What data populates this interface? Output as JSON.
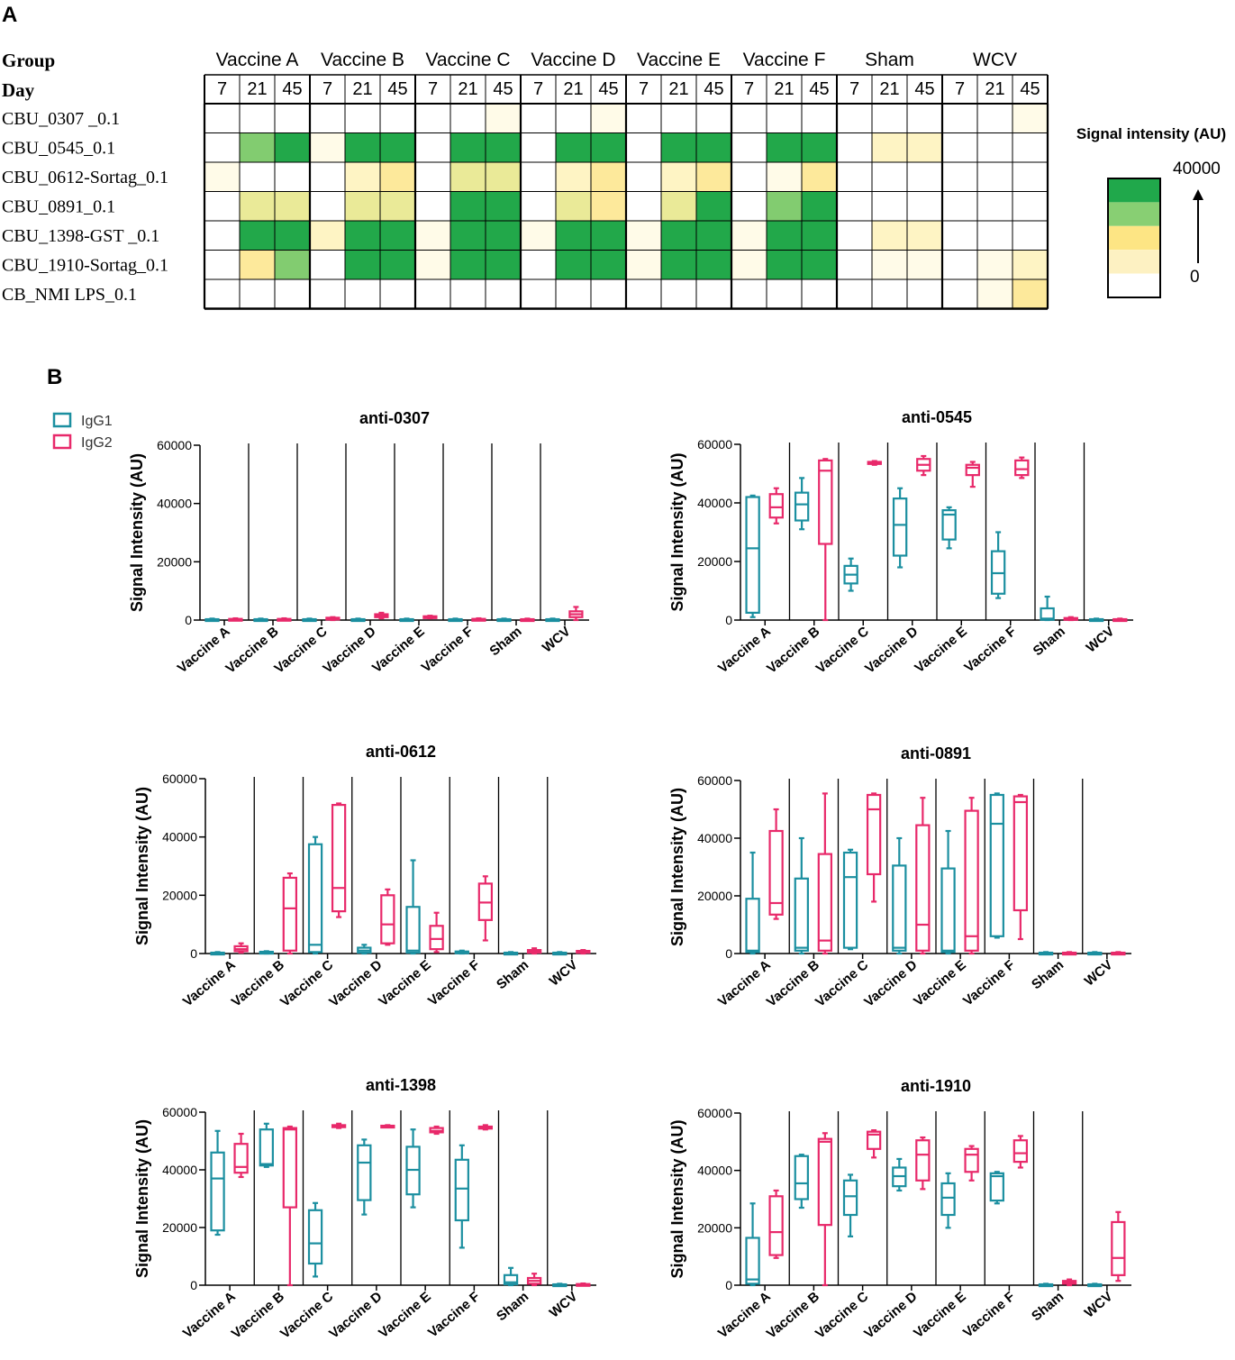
{
  "panel_a_label": "A",
  "panel_b_label": "B",
  "heatmap": {
    "row_header_group": "Group",
    "row_header_day": "Day",
    "groups": [
      "Vaccine A",
      "Vaccine B",
      "Vaccine C",
      "Vaccine D",
      "Vaccine E",
      "Vaccine F",
      "Sham",
      "WCV"
    ],
    "days": [
      "7",
      "21",
      "45"
    ],
    "rows": [
      "CBU_0307 _0.1",
      "CBU_0545_0.1",
      "CBU_0612-Sortag_0.1",
      "CBU_0891_0.1",
      "CBU_1398-GST _0.1",
      "CBU_1910-Sortag_0.1",
      "CB_NMI LPS_0.1"
    ],
    "levels": [
      [
        0,
        0,
        0,
        0,
        0,
        0,
        0,
        0,
        1,
        0,
        0,
        1,
        0,
        0,
        0,
        0,
        0,
        0,
        0,
        0,
        0,
        0,
        0,
        1
      ],
      [
        0,
        6,
        7,
        1,
        7,
        7,
        0,
        7,
        7,
        0,
        7,
        7,
        0,
        7,
        7,
        0,
        7,
        7,
        0,
        2,
        2,
        0,
        0,
        0
      ],
      [
        1,
        0,
        0,
        0,
        2,
        3,
        0,
        4,
        4,
        0,
        2,
        3,
        0,
        2,
        3,
        0,
        1,
        3,
        0,
        0,
        0,
        0,
        0,
        0
      ],
      [
        0,
        4,
        4,
        0,
        4,
        4,
        0,
        7,
        7,
        0,
        4,
        3,
        0,
        4,
        7,
        0,
        6,
        7,
        0,
        0,
        0,
        0,
        0,
        0
      ],
      [
        0,
        7,
        7,
        2,
        7,
        7,
        1,
        7,
        7,
        1,
        7,
        7,
        1,
        7,
        7,
        1,
        7,
        7,
        0,
        2,
        2,
        0,
        0,
        0
      ],
      [
        0,
        3,
        6,
        0,
        7,
        7,
        1,
        7,
        7,
        0,
        7,
        7,
        1,
        7,
        7,
        1,
        7,
        7,
        0,
        1,
        1,
        0,
        1,
        2
      ],
      [
        0,
        0,
        0,
        0,
        0,
        0,
        0,
        0,
        0,
        0,
        0,
        0,
        0,
        0,
        0,
        0,
        0,
        0,
        0,
        0,
        0,
        0,
        1,
        3
      ]
    ],
    "level_colors": [
      "#ffffff",
      "#fffbe8",
      "#fef4c4",
      "#fde99b",
      "#eaea98",
      "#d4e48f",
      "#82cc70",
      "#22a84a"
    ],
    "legend": {
      "title": "Signal intensity (AU)",
      "max_label": "40000",
      "min_label": "0",
      "colors": [
        "#20a84b",
        "#88cf73",
        "#fde584",
        "#fdf1c2",
        "#ffffff"
      ]
    }
  },
  "box_legend": {
    "igg1": "IgG1",
    "igg2": "IgG2"
  },
  "colors": {
    "igg1": "#1b8fa0",
    "igg2": "#e8296a"
  },
  "chart_data": [
    {
      "type": "box",
      "title": "anti-0307",
      "ylabel": "Signal Intensity (AU)",
      "ylim": [
        0,
        60000
      ],
      "yticks": [
        0,
        20000,
        40000,
        60000
      ],
      "categories": [
        "Vaccine A",
        "Vaccine B",
        "Vaccine C",
        "Vaccine D",
        "Vaccine E",
        "Vaccine F",
        "Sham",
        "WCV"
      ],
      "series": [
        {
          "name": "IgG1",
          "boxes": [
            [
              0,
              100,
              200,
              300,
              500
            ],
            [
              0,
              100,
              200,
              300,
              500
            ],
            [
              0,
              100,
              200,
              300,
              500
            ],
            [
              0,
              100,
              200,
              300,
              500
            ],
            [
              0,
              100,
              200,
              300,
              500
            ],
            [
              0,
              100,
              200,
              300,
              500
            ],
            [
              0,
              100,
              200,
              300,
              500
            ],
            [
              0,
              100,
              200,
              300,
              500
            ]
          ]
        },
        {
          "name": "IgG2",
          "boxes": [
            [
              0,
              100,
              200,
              400,
              600
            ],
            [
              0,
              100,
              200,
              400,
              600
            ],
            [
              0,
              200,
              400,
              800,
              1000
            ],
            [
              600,
              1000,
              1500,
              2000,
              2500
            ],
            [
              600,
              800,
              1000,
              1300,
              1500
            ],
            [
              0,
              100,
              200,
              400,
              600
            ],
            [
              0,
              100,
              200,
              300,
              500
            ],
            [
              0,
              1000,
              2000,
              3000,
              4500
            ]
          ]
        }
      ]
    },
    {
      "type": "box",
      "title": "anti-0545",
      "ylabel": "Signal Intensity (AU)",
      "ylim": [
        0,
        60000
      ],
      "yticks": [
        0,
        20000,
        40000,
        60000
      ],
      "categories": [
        "Vaccine A",
        "Vaccine B",
        "Vaccine C",
        "Vaccine D",
        "Vaccine E",
        "Vaccine F",
        "Sham",
        "WCV"
      ],
      "series": [
        {
          "name": "IgG1",
          "boxes": [
            [
              1000,
              2500,
              24500,
              42000,
              42500
            ],
            [
              31000,
              34000,
              39500,
              43500,
              48500
            ],
            [
              10000,
              12500,
              15500,
              18500,
              21000
            ],
            [
              18000,
              22000,
              32500,
              41500,
              45000
            ],
            [
              24500,
              27500,
              36000,
              37500,
              38500
            ],
            [
              7500,
              9000,
              16000,
              23500,
              30000
            ],
            [
              0,
              100,
              500,
              4000,
              8000
            ],
            [
              0,
              100,
              200,
              300,
              500
            ]
          ]
        },
        {
          "name": "IgG2",
          "boxes": [
            [
              33000,
              35000,
              38500,
              43000,
              45000
            ],
            [
              0,
              26000,
              51000,
              54500,
              55000
            ],
            [
              53000,
              53300,
              53700,
              54000,
              54300
            ],
            [
              49500,
              51000,
              53000,
              55000,
              56000
            ],
            [
              45500,
              49500,
              52000,
              53000,
              54000
            ],
            [
              48500,
              49500,
              51500,
              54500,
              55500
            ],
            [
              0,
              200,
              500,
              700,
              1000
            ],
            [
              0,
              100,
              200,
              300,
              500
            ]
          ]
        }
      ]
    },
    {
      "type": "box",
      "title": "anti-0612",
      "ylabel": "Signal Intensity (AU)",
      "ylim": [
        0,
        60000
      ],
      "yticks": [
        0,
        20000,
        40000,
        60000
      ],
      "categories": [
        "Vaccine A",
        "Vaccine B",
        "Vaccine C",
        "Vaccine D",
        "Vaccine E",
        "Vaccine F",
        "Sham",
        "WCV"
      ],
      "series": [
        {
          "name": "IgG1",
          "boxes": [
            [
              0,
              100,
              200,
              300,
              500
            ],
            [
              0,
              200,
              400,
              600,
              800
            ],
            [
              0,
              500,
              3000,
              37500,
              40000
            ],
            [
              0,
              300,
              1000,
              2000,
              3000
            ],
            [
              0,
              300,
              1000,
              16000,
              32000
            ],
            [
              0,
              200,
              500,
              700,
              1000
            ],
            [
              0,
              100,
              200,
              300,
              500
            ],
            [
              0,
              100,
              200,
              300,
              500
            ]
          ]
        },
        {
          "name": "IgG2",
          "boxes": [
            [
              300,
              800,
              1500,
              2500,
              3500
            ],
            [
              0,
              1000,
              15500,
              26000,
              27500
            ],
            [
              12500,
              14500,
              22500,
              51000,
              51500
            ],
            [
              3000,
              3500,
              10000,
              20000,
              22000
            ],
            [
              500,
              1500,
              5000,
              9500,
              14000
            ],
            [
              4500,
              11500,
              17500,
              24000,
              26500
            ],
            [
              0,
              300,
              800,
              1200,
              1800
            ],
            [
              0,
              300,
              600,
              900,
              1200
            ]
          ]
        }
      ]
    },
    {
      "type": "box",
      "title": "anti-0891",
      "ylabel": "Signal Intensity (AU)",
      "ylim": [
        0,
        60000
      ],
      "yticks": [
        0,
        20000,
        40000,
        60000
      ],
      "categories": [
        "Vaccine A",
        "Vaccine B",
        "Vaccine C",
        "Vaccine D",
        "Vaccine E",
        "Vaccine F",
        "Sham",
        "WCV"
      ],
      "series": [
        {
          "name": "IgG1",
          "boxes": [
            [
              0,
              500,
              1000,
              19000,
              35000
            ],
            [
              0,
              1000,
              2000,
              26000,
              40000
            ],
            [
              1500,
              2000,
              26500,
              35000,
              36000
            ],
            [
              0,
              1000,
              2000,
              30500,
              40000
            ],
            [
              0,
              500,
              1000,
              29500,
              42500
            ],
            [
              5500,
              6000,
              45000,
              55000,
              55500
            ],
            [
              0,
              100,
              200,
              300,
              500
            ],
            [
              0,
              100,
              200,
              300,
              500
            ]
          ]
        },
        {
          "name": "IgG2",
          "boxes": [
            [
              12000,
              13500,
              17500,
              42500,
              50000
            ],
            [
              0,
              1000,
              4500,
              34500,
              55500
            ],
            [
              18000,
              27500,
              50000,
              55000,
              55500
            ],
            [
              0,
              1000,
              10000,
              44500,
              54000
            ],
            [
              0,
              1000,
              6000,
              49500,
              54000
            ],
            [
              5000,
              15000,
              52500,
              54500,
              55000
            ],
            [
              0,
              100,
              200,
              300,
              500
            ],
            [
              0,
              100,
              200,
              300,
              500
            ]
          ]
        }
      ]
    },
    {
      "type": "box",
      "title": "anti-1398",
      "ylabel": "Signal Intensity (AU)",
      "ylim": [
        0,
        60000
      ],
      "yticks": [
        0,
        20000,
        40000,
        60000
      ],
      "categories": [
        "Vaccine A",
        "Vaccine B",
        "Vaccine C",
        "Vaccine D",
        "Vaccine E",
        "Vaccine F",
        "Sham",
        "WCV"
      ],
      "series": [
        {
          "name": "IgG1",
          "boxes": [
            [
              17500,
              19000,
              37000,
              46000,
              53500
            ],
            [
              41000,
              41500,
              42000,
              54000,
              56000
            ],
            [
              3000,
              7500,
              14500,
              26000,
              28500
            ],
            [
              24500,
              29500,
              42500,
              48500,
              50500
            ],
            [
              27000,
              31500,
              40000,
              48000,
              54000
            ],
            [
              13000,
              22500,
              33500,
              43500,
              48500
            ],
            [
              0,
              300,
              1000,
              3500,
              6000
            ],
            [
              0,
              100,
              200,
              300,
              500
            ]
          ]
        },
        {
          "name": "IgG2",
          "boxes": [
            [
              37500,
              39000,
              41000,
              49000,
              52500
            ],
            [
              0,
              27000,
              54000,
              54500,
              55000
            ],
            [
              54500,
              54800,
              55200,
              55500,
              56000
            ],
            [
              55000,
              55100,
              55200,
              55300,
              55500
            ],
            [
              52500,
              53000,
              53500,
              54500,
              55000
            ],
            [
              54000,
              54300,
              54700,
              55000,
              55500
            ],
            [
              0,
              500,
              1500,
              2500,
              4000
            ],
            [
              0,
              100,
              200,
              400,
              600
            ]
          ]
        }
      ]
    },
    {
      "type": "box",
      "title": "anti-1910",
      "ylabel": "Signal Intensity (AU)",
      "ylim": [
        0,
        60000
      ],
      "yticks": [
        0,
        20000,
        40000,
        60000
      ],
      "categories": [
        "Vaccine A",
        "Vaccine B",
        "Vaccine C",
        "Vaccine D",
        "Vaccine E",
        "Vaccine F",
        "Sham",
        "WCV"
      ],
      "series": [
        {
          "name": "IgG1",
          "boxes": [
            [
              0,
              500,
              2000,
              16500,
              28500
            ],
            [
              27000,
              30000,
              35500,
              45000,
              45500
            ],
            [
              17000,
              24500,
              31000,
              36500,
              38500
            ],
            [
              33000,
              34500,
              38000,
              41000,
              44000
            ],
            [
              20000,
              24500,
              30500,
              35500,
              39000
            ],
            [
              28500,
              29500,
              38000,
              39000,
              39500
            ],
            [
              0,
              100,
              200,
              300,
              500
            ],
            [
              0,
              100,
              200,
              300,
              500
            ]
          ]
        },
        {
          "name": "IgG2",
          "boxes": [
            [
              9500,
              10500,
              18500,
              31000,
              33000
            ],
            [
              0,
              21000,
              50000,
              51000,
              53000
            ],
            [
              44500,
              47500,
              52500,
              53500,
              54000
            ],
            [
              33500,
              36500,
              45500,
              50500,
              51500
            ],
            [
              36500,
              39500,
              45500,
              47500,
              48500
            ],
            [
              41000,
              43000,
              46000,
              50500,
              52000
            ],
            [
              0,
              500,
              1000,
              1500,
              2000
            ],
            [
              1500,
              3500,
              9500,
              22000,
              25500
            ]
          ]
        }
      ]
    }
  ]
}
